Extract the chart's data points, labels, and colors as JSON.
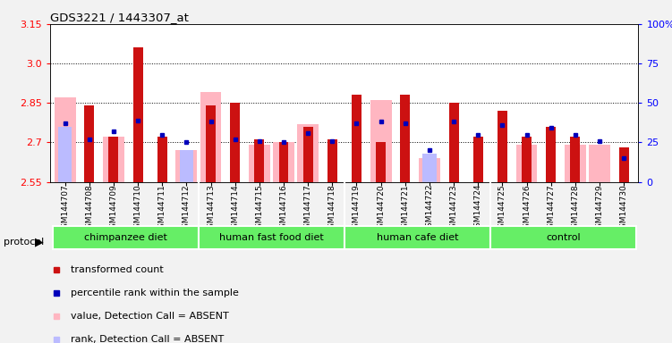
{
  "title": "GDS3221 / 1443307_at",
  "samples": [
    "GSM144707",
    "GSM144708",
    "GSM144709",
    "GSM144710",
    "GSM144711",
    "GSM144712",
    "GSM144713",
    "GSM144714",
    "GSM144715",
    "GSM144716",
    "GSM144717",
    "GSM144718",
    "GSM144719",
    "GSM144720",
    "GSM144721",
    "GSM144722",
    "GSM144723",
    "GSM144724",
    "GSM144725",
    "GSM144726",
    "GSM144727",
    "GSM144728",
    "GSM144729",
    "GSM144730"
  ],
  "red_values": [
    2.55,
    2.84,
    2.72,
    3.06,
    2.72,
    2.55,
    2.84,
    2.85,
    2.71,
    2.7,
    2.76,
    2.71,
    2.88,
    2.7,
    2.88,
    2.55,
    2.85,
    2.72,
    2.82,
    2.72,
    2.76,
    2.72,
    2.55,
    2.68
  ],
  "pink_values": [
    2.87,
    2.55,
    2.72,
    2.55,
    2.55,
    2.67,
    2.89,
    2.55,
    2.69,
    2.7,
    2.77,
    2.55,
    2.55,
    2.86,
    2.55,
    2.64,
    2.55,
    2.55,
    2.55,
    2.69,
    2.55,
    2.69,
    2.69,
    2.55
  ],
  "blue_values": [
    37,
    27,
    32,
    39,
    30,
    25,
    38,
    27,
    26,
    25,
    31,
    26,
    37,
    38,
    37,
    20,
    38,
    30,
    36,
    30,
    34,
    30,
    26,
    15
  ],
  "light_blue_values": [
    35,
    0,
    0,
    0,
    0,
    20,
    0,
    0,
    0,
    0,
    0,
    0,
    0,
    0,
    0,
    18,
    0,
    0,
    0,
    0,
    0,
    0,
    0,
    0
  ],
  "y_min": 2.55,
  "y_max": 3.15,
  "y_ticks": [
    2.55,
    2.7,
    2.85,
    3.0,
    3.15
  ],
  "y2_ticks": [
    0,
    25,
    50,
    75,
    100
  ],
  "protocol_groups": [
    {
      "label": "chimpanzee diet",
      "start": 0,
      "end": 6
    },
    {
      "label": "human fast food diet",
      "start": 6,
      "end": 12
    },
    {
      "label": "human cafe diet",
      "start": 12,
      "end": 18
    },
    {
      "label": "control",
      "start": 18,
      "end": 24
    }
  ],
  "bar_width": 0.4,
  "red_color": "#CC1111",
  "pink_color": "#FFB6C1",
  "blue_color": "#0000BB",
  "light_blue_color": "#BBBBFF",
  "fig_bg": "#F2F2F2",
  "plot_bg": "#FFFFFF",
  "green_color": "#66EE66",
  "legend_items": [
    {
      "color": "#CC1111",
      "label": "transformed count"
    },
    {
      "color": "#0000BB",
      "label": "percentile rank within the sample"
    },
    {
      "color": "#FFB6C1",
      "label": "value, Detection Call = ABSENT"
    },
    {
      "color": "#BBBBFF",
      "label": "rank, Detection Call = ABSENT"
    }
  ]
}
